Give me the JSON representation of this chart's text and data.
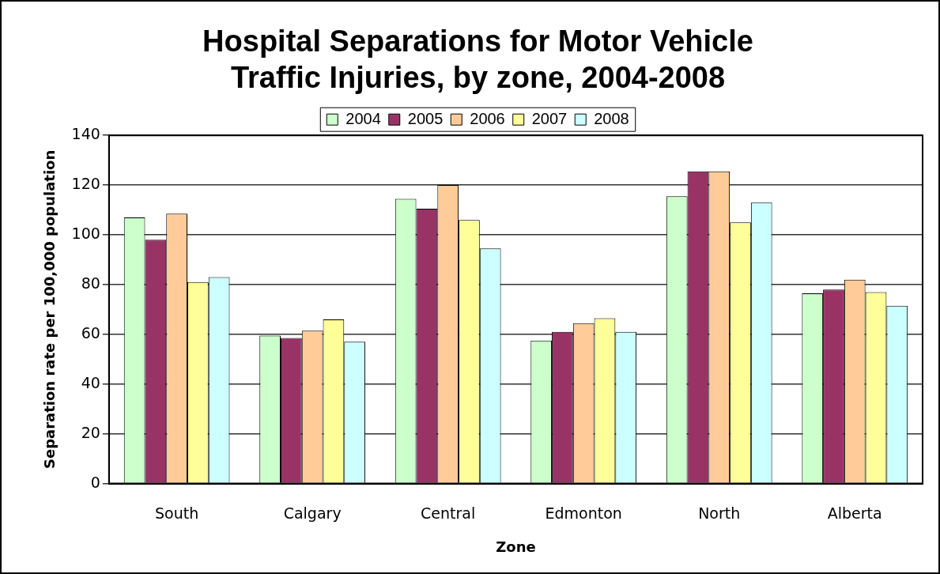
{
  "chart_data": {
    "type": "bar",
    "title": "Hospital Separations for Motor Vehicle Traffic Injuries, by zone, 2004-2008",
    "xlabel": "Zone",
    "ylabel": "Separation rate per 100,000 population",
    "categories": [
      "South",
      "Calgary",
      "Central",
      "Edmonton",
      "North",
      "Alberta"
    ],
    "series": [
      {
        "name": "2004",
        "color": "#ccffcc",
        "values": [
          107,
          59.5,
          114.5,
          57.5,
          115.5,
          76.5
        ]
      },
      {
        "name": "2005",
        "color": "#993366",
        "values": [
          98,
          58.5,
          110.5,
          61,
          125.5,
          78
        ]
      },
      {
        "name": "2006",
        "color": "#ffcc99",
        "values": [
          108.5,
          61.5,
          120,
          64.5,
          125.5,
          82
        ]
      },
      {
        "name": "2007",
        "color": "#ffff99",
        "values": [
          81,
          66,
          106,
          66.5,
          105,
          77
        ]
      },
      {
        "name": "2008",
        "color": "#ccffff",
        "values": [
          83,
          57,
          94.5,
          61,
          113,
          71.5
        ]
      }
    ],
    "ylim": [
      0,
      140
    ],
    "yticks": [
      0,
      20,
      40,
      60,
      80,
      100,
      120,
      140
    ],
    "grid": "y",
    "legend": "top"
  }
}
